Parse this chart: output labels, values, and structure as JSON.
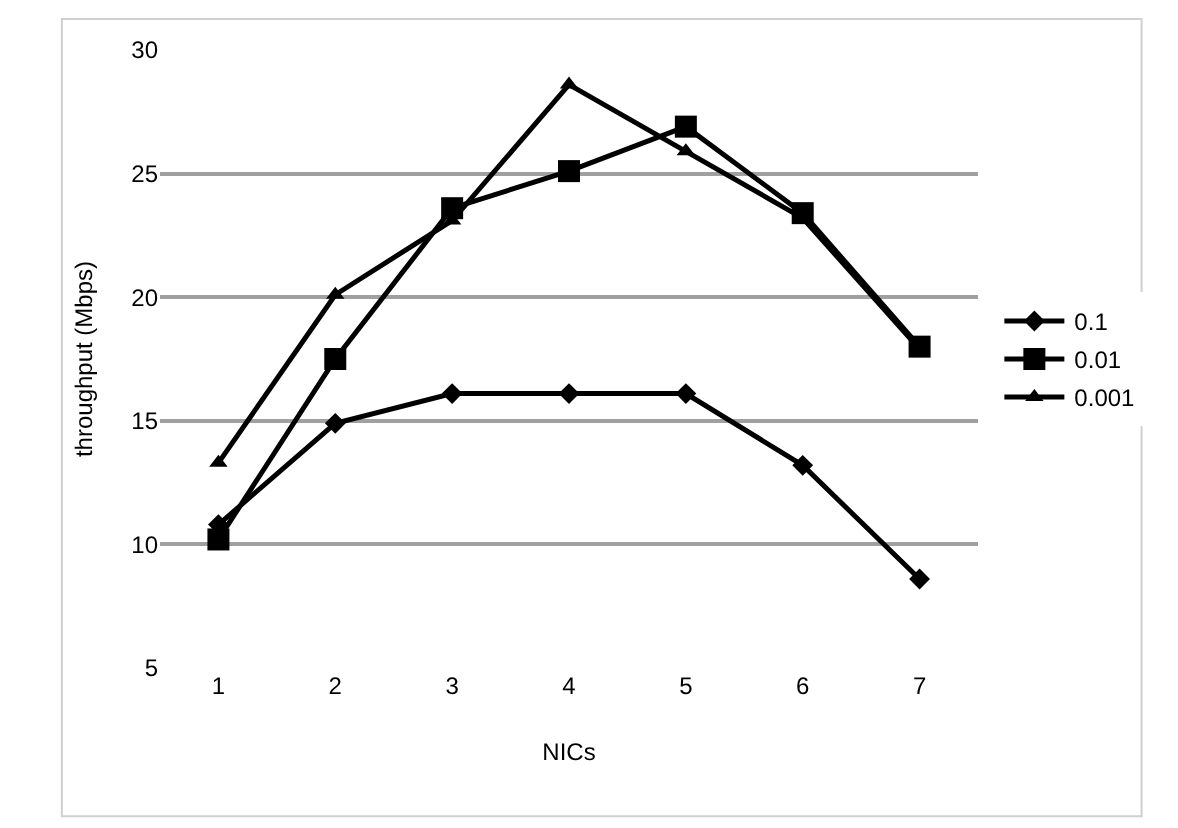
{
  "chart_data": {
    "type": "line",
    "xlabel": "NICs",
    "ylabel": "throughput (Mbps)",
    "categories": [
      "1",
      "2",
      "3",
      "4",
      "5",
      "6",
      "7"
    ],
    "series": [
      {
        "name": "0.1",
        "color": "#000000",
        "marker": "diamond",
        "values": [
          10.8,
          14.9,
          16.1,
          16.1,
          16.1,
          13.2,
          8.6
        ]
      },
      {
        "name": "0.01",
        "color": "#000000",
        "marker": "square",
        "values": [
          10.2,
          17.5,
          23.6,
          25.1,
          26.9,
          23.4,
          18.0
        ]
      },
      {
        "name": "0.001",
        "color": "#000000",
        "marker": "triangle",
        "values": [
          13.3,
          20.1,
          23.1,
          28.6,
          25.9,
          23.2,
          17.9
        ]
      }
    ],
    "ylim": [
      5,
      30
    ],
    "yticks": [
      5,
      10,
      15,
      20,
      25,
      30
    ],
    "grid": "y",
    "legend": "right",
    "line_style": "solid"
  }
}
